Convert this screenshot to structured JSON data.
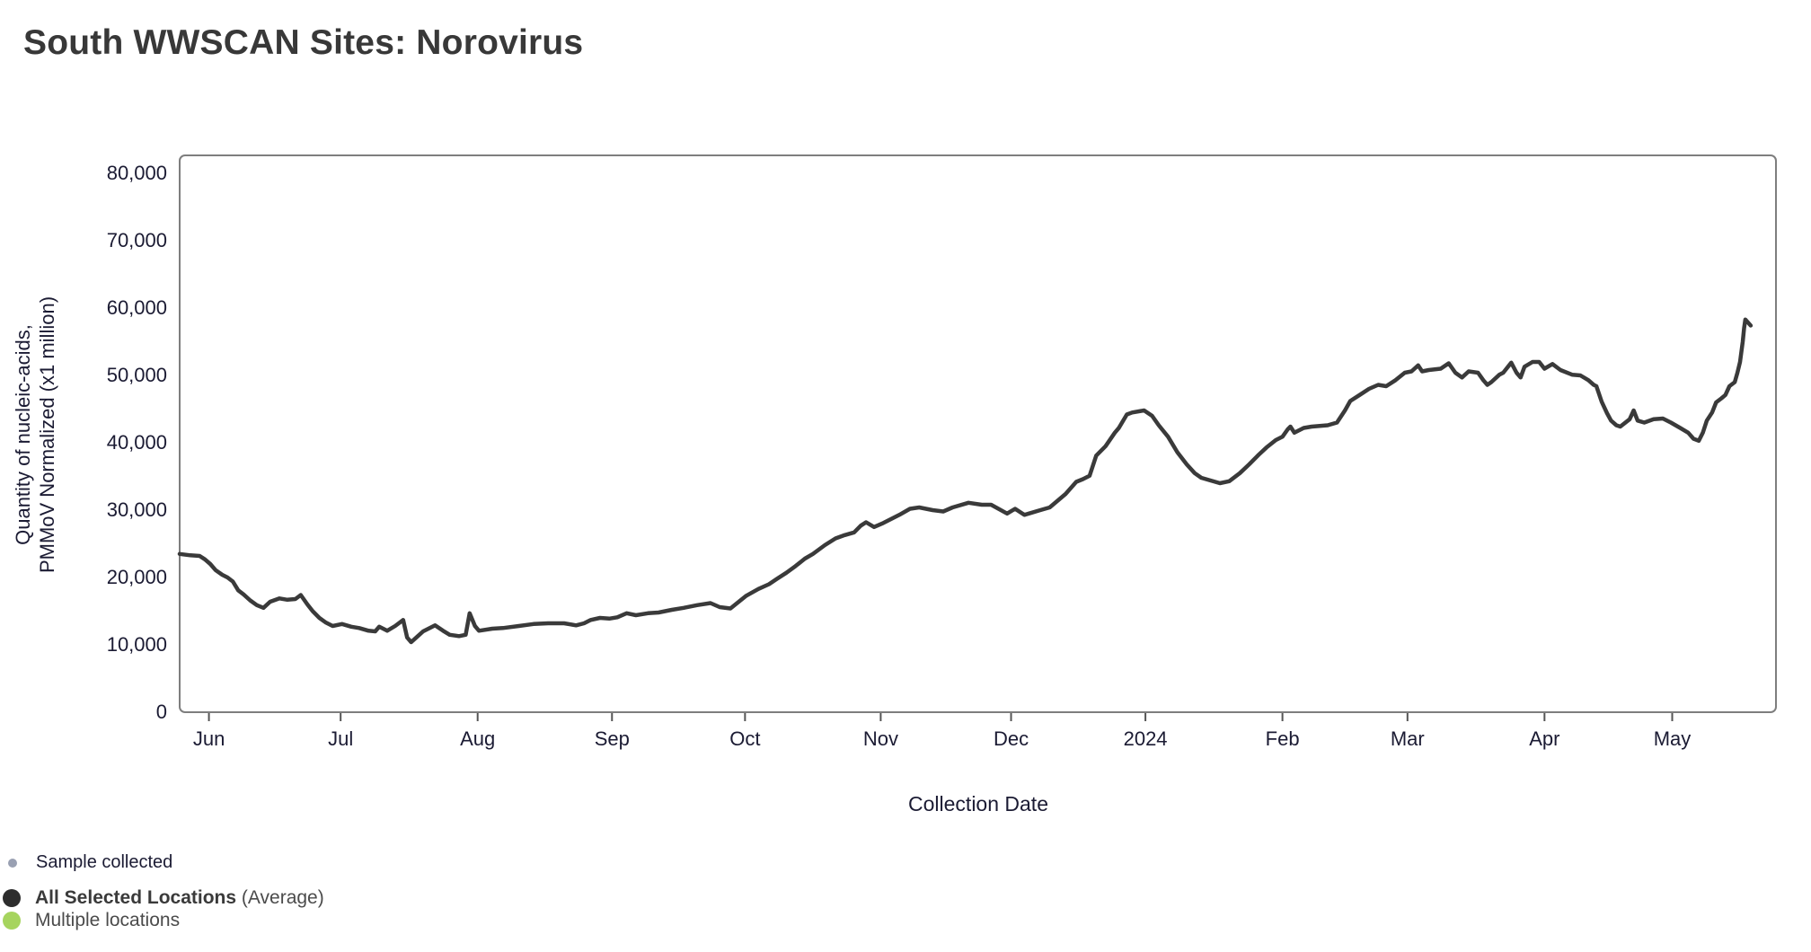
{
  "page": {
    "title": "South WWSCAN Sites: Norovirus"
  },
  "chart_data": {
    "type": "line",
    "title": "South WWSCAN Sites: Norovirus",
    "xlabel": "Collection Date",
    "ylabel": "Quantity of nucleic-acids, PMMoV Normalized (x1 million)",
    "ylabel_line1": "Quantity of nucleic-acids,",
    "ylabel_line2": "PMMoV Normalized (x1 million)",
    "grid": false,
    "legend_position": "bottom-left",
    "x_axis": {
      "unit": "decimal months since 2023-06-01",
      "range": [
        -0.22,
        11.78
      ],
      "ticks": [
        {
          "label": "Jun",
          "pos": 0
        },
        {
          "label": "Jul",
          "pos": 0.99
        },
        {
          "label": "Aug",
          "pos": 2.02
        },
        {
          "label": "Sep",
          "pos": 3.03
        },
        {
          "label": "Oct",
          "pos": 4.03
        },
        {
          "label": "Nov",
          "pos": 5.05
        },
        {
          "label": "Dec",
          "pos": 6.03
        },
        {
          "label": "2024",
          "pos": 7.04
        },
        {
          "label": "Feb",
          "pos": 8.07
        },
        {
          "label": "Mar",
          "pos": 9.01
        },
        {
          "label": "Apr",
          "pos": 10.04
        },
        {
          "label": "May",
          "pos": 11.0
        }
      ]
    },
    "y_axis": {
      "range": [
        0,
        80000
      ],
      "ticks": [
        {
          "label": "80,000",
          "value": 80000
        },
        {
          "label": "70,000",
          "value": 70000
        },
        {
          "label": "60,000",
          "value": 60000
        },
        {
          "label": "50,000",
          "value": 50000
        },
        {
          "label": "40,000",
          "value": 40000
        },
        {
          "label": "30,000",
          "value": 30000
        },
        {
          "label": "20,000",
          "value": 20000
        },
        {
          "label": "10,000",
          "value": 10000
        },
        {
          "label": "0",
          "value": 0
        }
      ]
    },
    "series": [
      {
        "name": "All Selected Locations (Average)",
        "color": "#3a3a3a",
        "width": 4.5,
        "points": [
          [
            -0.22,
            23500
          ],
          [
            -0.14,
            23300
          ],
          [
            -0.07,
            23200
          ],
          [
            -0.03,
            22700
          ],
          [
            0.01,
            22000
          ],
          [
            0.05,
            21100
          ],
          [
            0.1,
            20400
          ],
          [
            0.14,
            20000
          ],
          [
            0.18,
            19400
          ],
          [
            0.22,
            18100
          ],
          [
            0.26,
            17500
          ],
          [
            0.31,
            16600
          ],
          [
            0.36,
            15900
          ],
          [
            0.41,
            15500
          ],
          [
            0.46,
            16400
          ],
          [
            0.53,
            16900
          ],
          [
            0.59,
            16700
          ],
          [
            0.65,
            16800
          ],
          [
            0.69,
            17400
          ],
          [
            0.74,
            16000
          ],
          [
            0.78,
            15000
          ],
          [
            0.83,
            14000
          ],
          [
            0.88,
            13300
          ],
          [
            0.93,
            12800
          ],
          [
            1.0,
            13100
          ],
          [
            1.07,
            12700
          ],
          [
            1.13,
            12500
          ],
          [
            1.2,
            12100
          ],
          [
            1.25,
            12000
          ],
          [
            1.28,
            12700
          ],
          [
            1.34,
            12100
          ],
          [
            1.4,
            12800
          ],
          [
            1.46,
            13700
          ],
          [
            1.49,
            11100
          ],
          [
            1.52,
            10400
          ],
          [
            1.57,
            11300
          ],
          [
            1.61,
            12000
          ],
          [
            1.7,
            12900
          ],
          [
            1.76,
            12100
          ],
          [
            1.81,
            11500
          ],
          [
            1.88,
            11300
          ],
          [
            1.93,
            11500
          ],
          [
            1.96,
            14700
          ],
          [
            2.0,
            12800
          ],
          [
            2.03,
            12100
          ],
          [
            2.13,
            12400
          ],
          [
            2.21,
            12500
          ],
          [
            2.33,
            12800
          ],
          [
            2.44,
            13100
          ],
          [
            2.55,
            13200
          ],
          [
            2.67,
            13200
          ],
          [
            2.76,
            12900
          ],
          [
            2.82,
            13200
          ],
          [
            2.87,
            13700
          ],
          [
            2.94,
            14000
          ],
          [
            3.01,
            13900
          ],
          [
            3.07,
            14100
          ],
          [
            3.14,
            14700
          ],
          [
            3.21,
            14400
          ],
          [
            3.3,
            14700
          ],
          [
            3.38,
            14800
          ],
          [
            3.48,
            15200
          ],
          [
            3.57,
            15500
          ],
          [
            3.67,
            15900
          ],
          [
            3.77,
            16200
          ],
          [
            3.84,
            15600
          ],
          [
            3.92,
            15400
          ],
          [
            4.04,
            17300
          ],
          [
            4.13,
            18300
          ],
          [
            4.21,
            19000
          ],
          [
            4.27,
            19800
          ],
          [
            4.34,
            20700
          ],
          [
            4.41,
            21700
          ],
          [
            4.48,
            22800
          ],
          [
            4.54,
            23500
          ],
          [
            4.63,
            24800
          ],
          [
            4.71,
            25800
          ],
          [
            4.78,
            26300
          ],
          [
            4.85,
            26700
          ],
          [
            4.9,
            27700
          ],
          [
            4.94,
            28200
          ],
          [
            5.0,
            27500
          ],
          [
            5.07,
            28100
          ],
          [
            5.19,
            29300
          ],
          [
            5.27,
            30200
          ],
          [
            5.34,
            30400
          ],
          [
            5.44,
            30000
          ],
          [
            5.52,
            29800
          ],
          [
            5.59,
            30400
          ],
          [
            5.71,
            31100
          ],
          [
            5.81,
            30800
          ],
          [
            5.88,
            30800
          ],
          [
            6.0,
            29500
          ],
          [
            6.06,
            30200
          ],
          [
            6.13,
            29300
          ],
          [
            6.25,
            30000
          ],
          [
            6.32,
            30400
          ],
          [
            6.44,
            32400
          ],
          [
            6.52,
            34200
          ],
          [
            6.57,
            34600
          ],
          [
            6.62,
            35100
          ],
          [
            6.67,
            38100
          ],
          [
            6.74,
            39500
          ],
          [
            6.81,
            41500
          ],
          [
            6.84,
            42200
          ],
          [
            6.9,
            44200
          ],
          [
            6.94,
            44500
          ],
          [
            7.03,
            44800
          ],
          [
            7.09,
            44000
          ],
          [
            7.14,
            42600
          ],
          [
            7.21,
            40900
          ],
          [
            7.28,
            38600
          ],
          [
            7.35,
            36800
          ],
          [
            7.41,
            35500
          ],
          [
            7.46,
            34800
          ],
          [
            7.53,
            34400
          ],
          [
            7.6,
            34000
          ],
          [
            7.67,
            34300
          ],
          [
            7.75,
            35500
          ],
          [
            7.82,
            36800
          ],
          [
            7.89,
            38200
          ],
          [
            7.95,
            39300
          ],
          [
            8.02,
            40400
          ],
          [
            8.07,
            40900
          ],
          [
            8.11,
            42000
          ],
          [
            8.13,
            42400
          ],
          [
            8.16,
            41500
          ],
          [
            8.23,
            42200
          ],
          [
            8.29,
            42400
          ],
          [
            8.41,
            42600
          ],
          [
            8.48,
            43000
          ],
          [
            8.54,
            44800
          ],
          [
            8.58,
            46200
          ],
          [
            8.65,
            47100
          ],
          [
            8.72,
            48000
          ],
          [
            8.79,
            48600
          ],
          [
            8.85,
            48400
          ],
          [
            8.92,
            49300
          ],
          [
            8.99,
            50400
          ],
          [
            9.04,
            50600
          ],
          [
            9.09,
            51500
          ],
          [
            9.12,
            50600
          ],
          [
            9.17,
            50800
          ],
          [
            9.26,
            51000
          ],
          [
            9.32,
            51800
          ],
          [
            9.37,
            50400
          ],
          [
            9.42,
            49700
          ],
          [
            9.47,
            50600
          ],
          [
            9.54,
            50400
          ],
          [
            9.58,
            49300
          ],
          [
            9.61,
            48600
          ],
          [
            9.64,
            49000
          ],
          [
            9.7,
            50100
          ],
          [
            9.73,
            50400
          ],
          [
            9.79,
            51900
          ],
          [
            9.83,
            50400
          ],
          [
            9.86,
            49700
          ],
          [
            9.89,
            51300
          ],
          [
            9.95,
            52000
          ],
          [
            10.0,
            52000
          ],
          [
            10.04,
            51000
          ],
          [
            10.1,
            51700
          ],
          [
            10.16,
            50800
          ],
          [
            10.25,
            50100
          ],
          [
            10.31,
            50000
          ],
          [
            10.37,
            49300
          ],
          [
            10.41,
            48600
          ],
          [
            10.43,
            48400
          ],
          [
            10.47,
            46100
          ],
          [
            10.51,
            44400
          ],
          [
            10.54,
            43300
          ],
          [
            10.58,
            42600
          ],
          [
            10.61,
            42400
          ],
          [
            10.68,
            43500
          ],
          [
            10.71,
            44800
          ],
          [
            10.74,
            43300
          ],
          [
            10.79,
            43000
          ],
          [
            10.86,
            43500
          ],
          [
            10.93,
            43600
          ],
          [
            10.99,
            43000
          ],
          [
            11.06,
            42200
          ],
          [
            11.12,
            41500
          ],
          [
            11.16,
            40600
          ],
          [
            11.2,
            40300
          ],
          [
            11.23,
            41500
          ],
          [
            11.26,
            43300
          ],
          [
            11.3,
            44500
          ],
          [
            11.33,
            46000
          ],
          [
            11.37,
            46600
          ],
          [
            11.4,
            47100
          ],
          [
            11.43,
            48400
          ],
          [
            11.47,
            49000
          ],
          [
            11.49,
            50400
          ],
          [
            11.51,
            52000
          ],
          [
            11.53,
            55000
          ],
          [
            11.54,
            57000
          ],
          [
            11.55,
            58300
          ],
          [
            11.59,
            57400
          ]
        ]
      }
    ]
  },
  "legend": {
    "sample_collected": "Sample collected",
    "all_selected_bold": "All Selected Locations",
    "all_selected_suffix": " (Average)",
    "multiple_locations": "Multiple locations",
    "dot_colors": {
      "sample": "#99a0b2",
      "all": "#2d2d2d",
      "multiple": "#a6d45e"
    }
  },
  "colors": {
    "axis_text": "#1b1b33",
    "title_text": "#383838",
    "plot_border": "#7e7e7e",
    "tick_mark": "#555555"
  }
}
